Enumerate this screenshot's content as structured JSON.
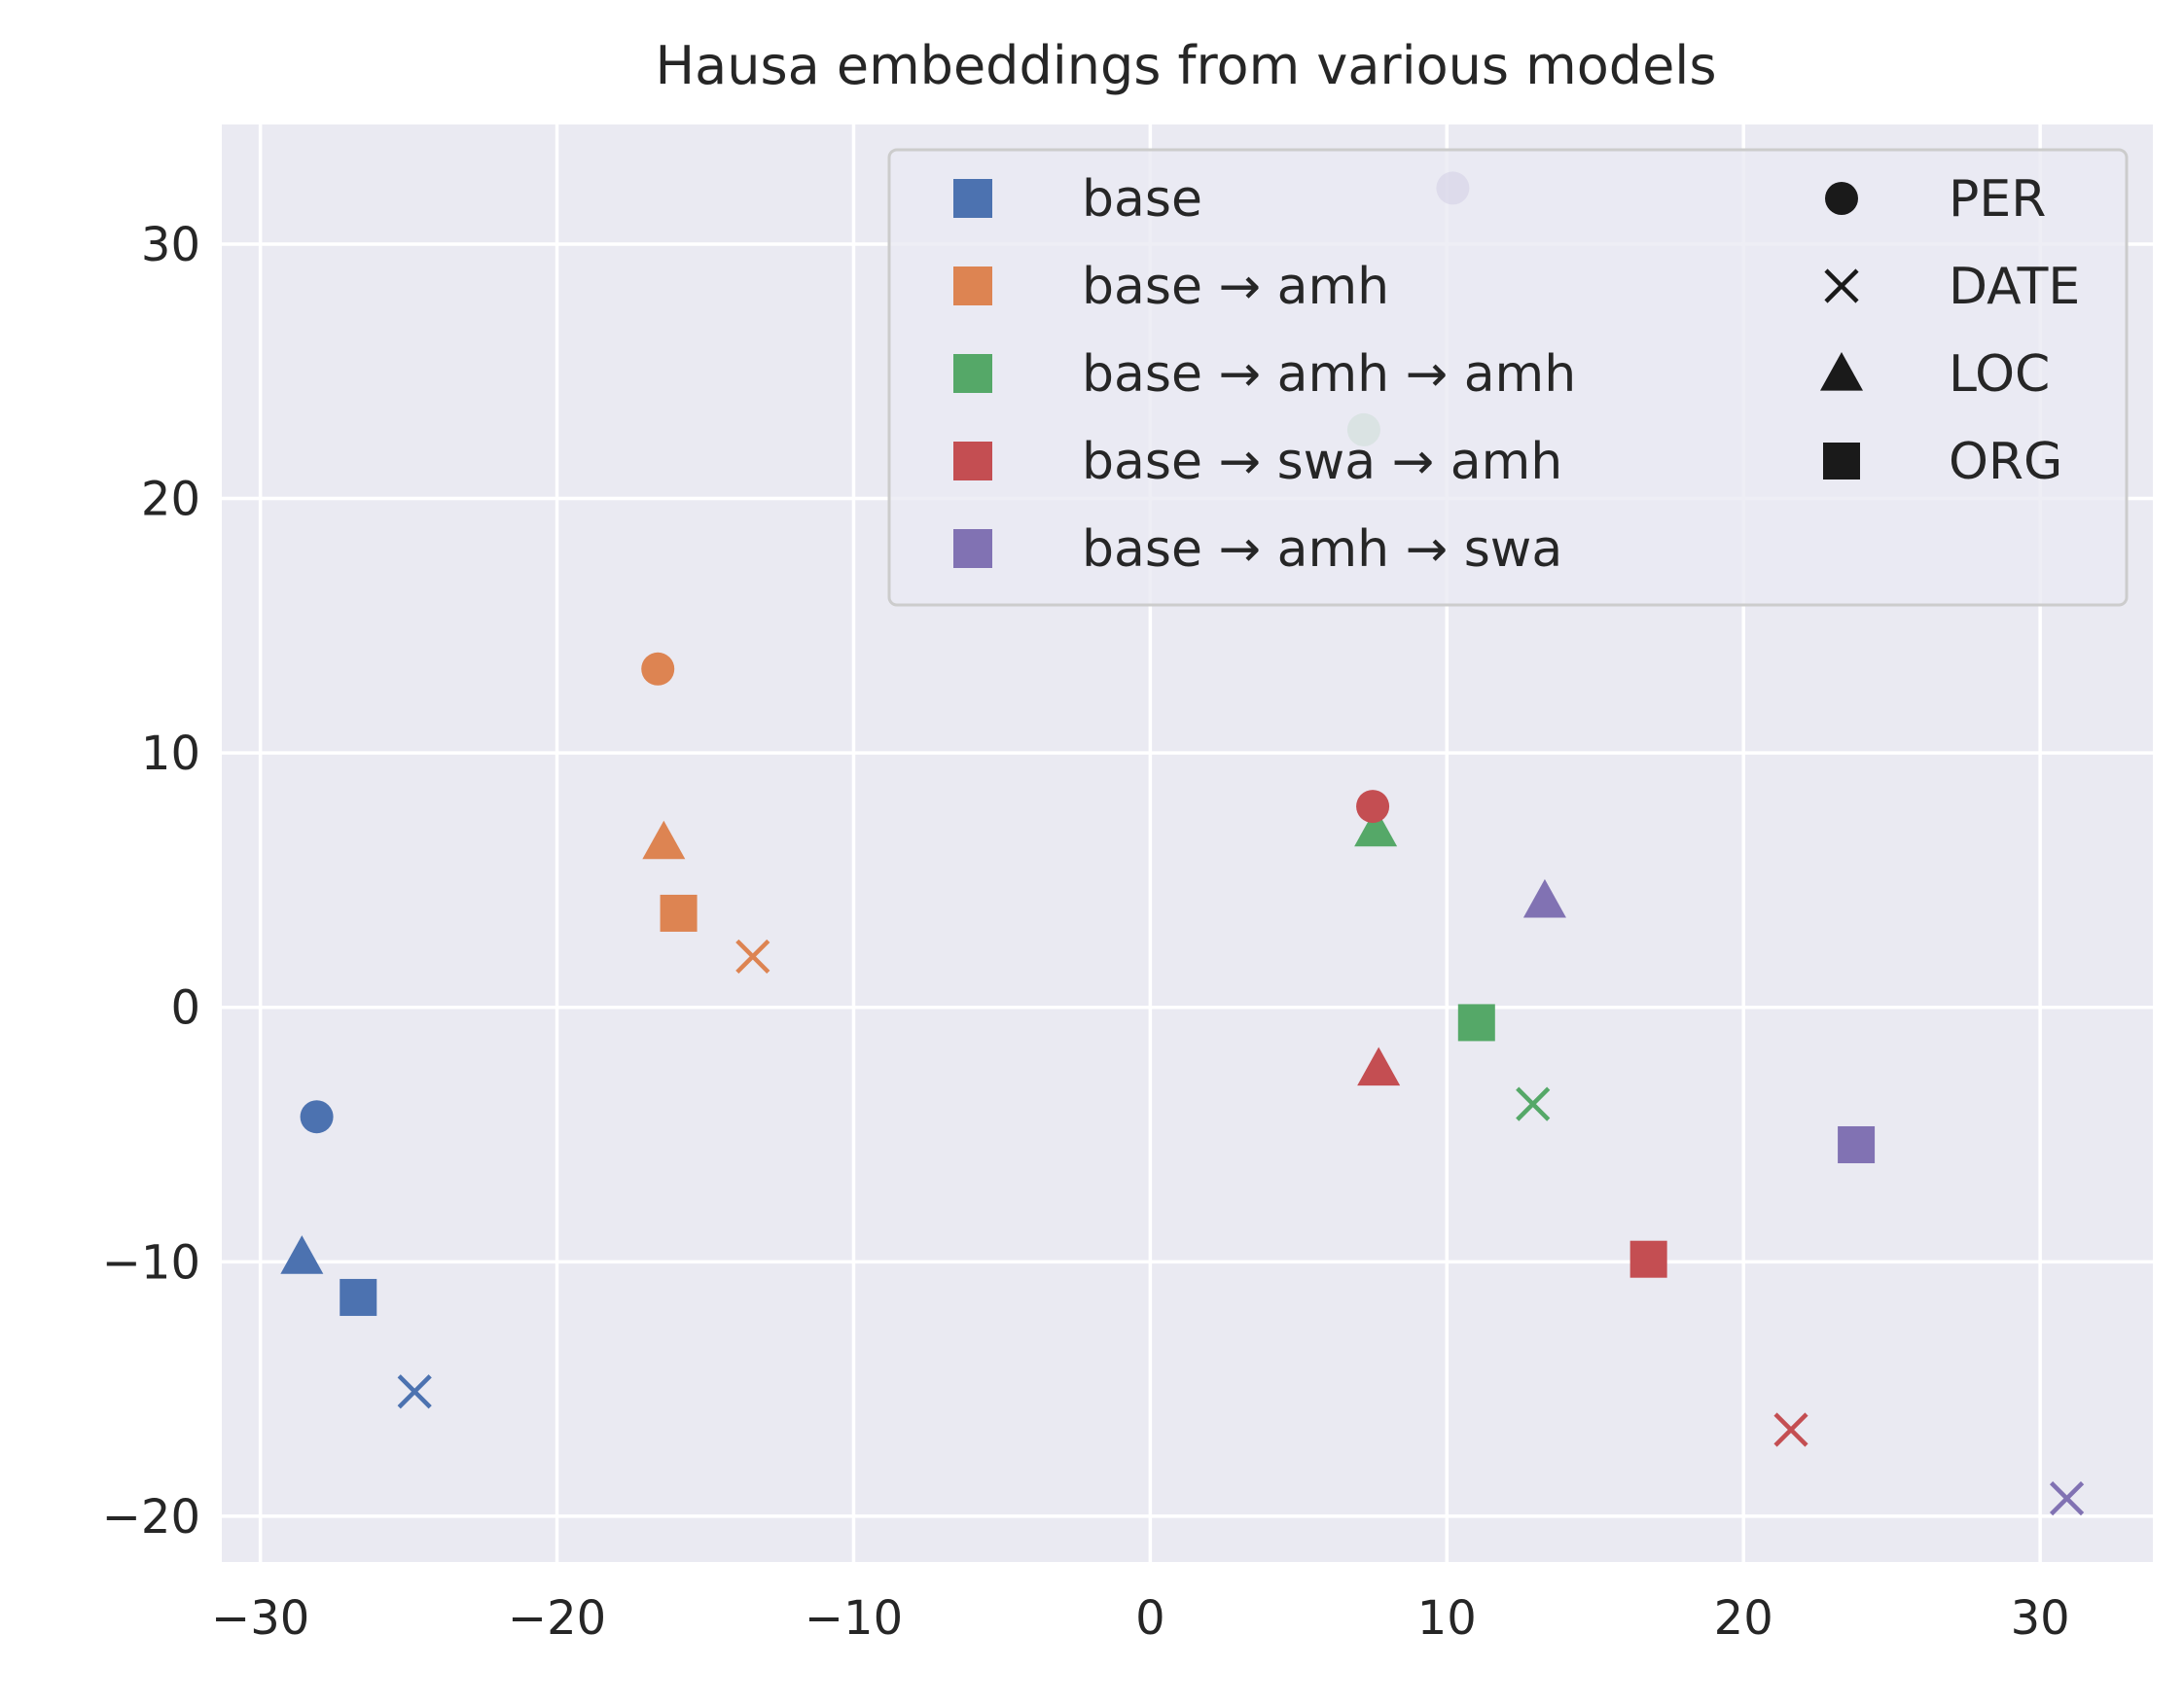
{
  "chart_data": {
    "type": "scatter",
    "title": "Hausa embeddings from various models",
    "xlabel": "",
    "ylabel": "",
    "xlim": [
      -31.3,
      33.8
    ],
    "ylim": [
      -21.8,
      34.7
    ],
    "xticks": [
      -30,
      -20,
      -10,
      0,
      10,
      20,
      30
    ],
    "yticks": [
      -20,
      -10,
      0,
      10,
      20,
      30
    ],
    "xtick_labels": [
      "−30",
      "−20",
      "−10",
      "0",
      "10",
      "20",
      "30"
    ],
    "ytick_labels": [
      "−20",
      "−10",
      "0",
      "10",
      "20",
      "30"
    ],
    "grid": true,
    "legend_placement": "top-right",
    "series": [
      {
        "name": "base",
        "color": "#4c72b0",
        "points": [
          {
            "x": -28.1,
            "y": -4.3,
            "type": "PER"
          },
          {
            "x": -24.8,
            "y": -15.1,
            "type": "DATE"
          },
          {
            "x": -28.6,
            "y": -9.8,
            "type": "LOC"
          },
          {
            "x": -26.7,
            "y": -11.4,
            "type": "ORG"
          }
        ]
      },
      {
        "name": "base → amh",
        "color": "#dd8452",
        "points": [
          {
            "x": -16.6,
            "y": 13.3,
            "type": "PER"
          },
          {
            "x": -13.4,
            "y": 2.0,
            "type": "DATE"
          },
          {
            "x": -16.4,
            "y": 6.5,
            "type": "LOC"
          },
          {
            "x": -15.9,
            "y": 3.7,
            "type": "ORG"
          }
        ]
      },
      {
        "name": "base → amh → amh",
        "color": "#55a868",
        "points": [
          {
            "x": 7.2,
            "y": 22.7,
            "type": "PER",
            "alpha": 0.55
          },
          {
            "x": 12.9,
            "y": -3.8,
            "type": "DATE"
          },
          {
            "x": 7.6,
            "y": 7.0,
            "type": "LOC"
          },
          {
            "x": 11.0,
            "y": -0.6,
            "type": "ORG"
          }
        ]
      },
      {
        "name": "base → swa → amh",
        "color": "#c44e52",
        "points": [
          {
            "x": 7.5,
            "y": 7.9,
            "type": "PER"
          },
          {
            "x": 21.6,
            "y": -16.6,
            "type": "DATE"
          },
          {
            "x": 7.7,
            "y": -2.4,
            "type": "LOC"
          },
          {
            "x": 16.8,
            "y": -9.9,
            "type": "ORG"
          }
        ]
      },
      {
        "name": "base → amh → swa",
        "color": "#8172b3",
        "points": [
          {
            "x": 10.2,
            "y": 32.2,
            "type": "PER",
            "alpha": 0.6
          },
          {
            "x": 30.9,
            "y": -19.3,
            "type": "DATE"
          },
          {
            "x": 13.3,
            "y": 4.2,
            "type": "LOC"
          },
          {
            "x": 23.8,
            "y": -5.4,
            "type": "ORG"
          }
        ]
      }
    ],
    "marker_legend": [
      {
        "label": "PER",
        "marker": "circle"
      },
      {
        "label": "DATE",
        "marker": "x"
      },
      {
        "label": "LOC",
        "marker": "triangle"
      },
      {
        "label": "ORG",
        "marker": "square"
      }
    ]
  },
  "colors": {
    "plot_background": "#eaeaf2",
    "grid": "#ffffff",
    "text": "#262626",
    "legend_marker": "#1a1a1a"
  }
}
